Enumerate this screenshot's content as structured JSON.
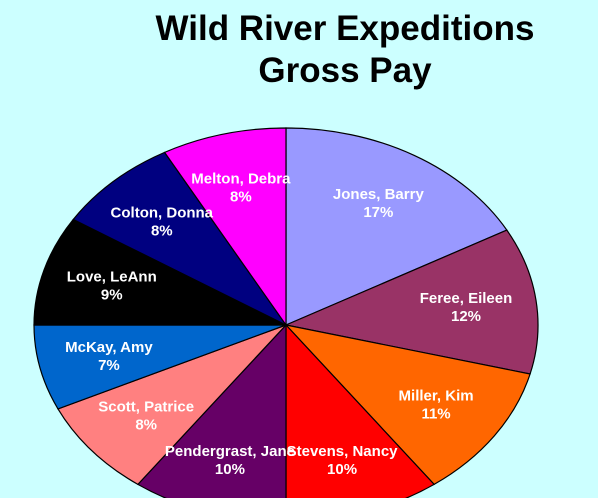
{
  "chart_data": {
    "type": "pie",
    "title": [
      "Wild River Expeditions",
      "Gross Pay"
    ],
    "categories": [
      "Jones, Barry",
      "Feree, Eileen",
      "Miller, Kim",
      "Stevens, Nancy",
      "Pendergrast, Jane",
      "Scott, Patrice",
      "McKay, Amy",
      "Love, LeAnn",
      "Colton, Donna",
      "Melton, Debra"
    ],
    "values": [
      17,
      12,
      11,
      10,
      10,
      8,
      7,
      9,
      8,
      8
    ],
    "value_labels": [
      "17%",
      "12%",
      "11%",
      "10%",
      "10%",
      "8%",
      "7%",
      "9%",
      "8%",
      "8%"
    ],
    "colors": [
      "#9999ff",
      "#993366",
      "#ff6600",
      "#ff0000",
      "#660066",
      "#ff8080",
      "#0066cc",
      "#000000",
      "#000080",
      "#ff00ff"
    ]
  }
}
